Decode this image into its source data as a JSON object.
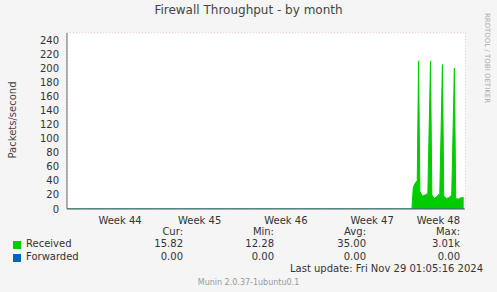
{
  "chart_data": {
    "type": "area",
    "title": "Firewall Throughput - by month",
    "ylabel": "Packets/second",
    "watermark": "RRDTOOL / TOBI OETIKER",
    "footer": "Last update: Fri Nov 29 01:05:16 2024",
    "credit": "Munin 2.0.37-1ubuntu0.1",
    "x": [
      0,
      26.0,
      26.1,
      26.2,
      26.3,
      26.4,
      26.5,
      26.6,
      26.8,
      27.0,
      27.2,
      27.4,
      27.5,
      27.7,
      27.9,
      28.1,
      28.3,
      28.4,
      28.6,
      28.8,
      29.0,
      29.2,
      29.3,
      29.5,
      29.7,
      29.9
    ],
    "xlim": [
      0,
      30
    ],
    "xticks": [
      {
        "value": 4,
        "label": "Week 44"
      },
      {
        "value": 10,
        "label": "Week 45"
      },
      {
        "value": 16.5,
        "label": "Week 46"
      },
      {
        "value": 23,
        "label": "Week 47"
      },
      {
        "value": 28,
        "label": "Week 48"
      }
    ],
    "ylim": [
      0,
      250
    ],
    "yticks": [
      0,
      20,
      40,
      60,
      80,
      100,
      120,
      140,
      160,
      180,
      200,
      220,
      240
    ],
    "grid": true,
    "summary_headers": [
      "Cur:",
      "Min:",
      "Avg:",
      "Max:"
    ],
    "series": [
      {
        "name": "Received",
        "color": "#00cc00",
        "values": [
          0,
          0,
          30,
          35,
          38,
          40,
          210,
          25,
          18,
          20,
          22,
          210,
          20,
          15,
          18,
          22,
          205,
          18,
          15,
          16,
          20,
          200,
          15,
          14,
          16,
          16
        ],
        "summary": [
          "15.82",
          "12.28",
          "35.00",
          "3.01k"
        ]
      },
      {
        "name": "Forwarded",
        "color": "#0066b3",
        "values": [
          0,
          0,
          0,
          0,
          0,
          0,
          0,
          0,
          0,
          0,
          0,
          0,
          0,
          0,
          0,
          0,
          0,
          0,
          0,
          0,
          0,
          0,
          0,
          0,
          0,
          0
        ],
        "summary": [
          "0.00",
          "0.00",
          "0.00",
          "0.00"
        ]
      }
    ]
  }
}
